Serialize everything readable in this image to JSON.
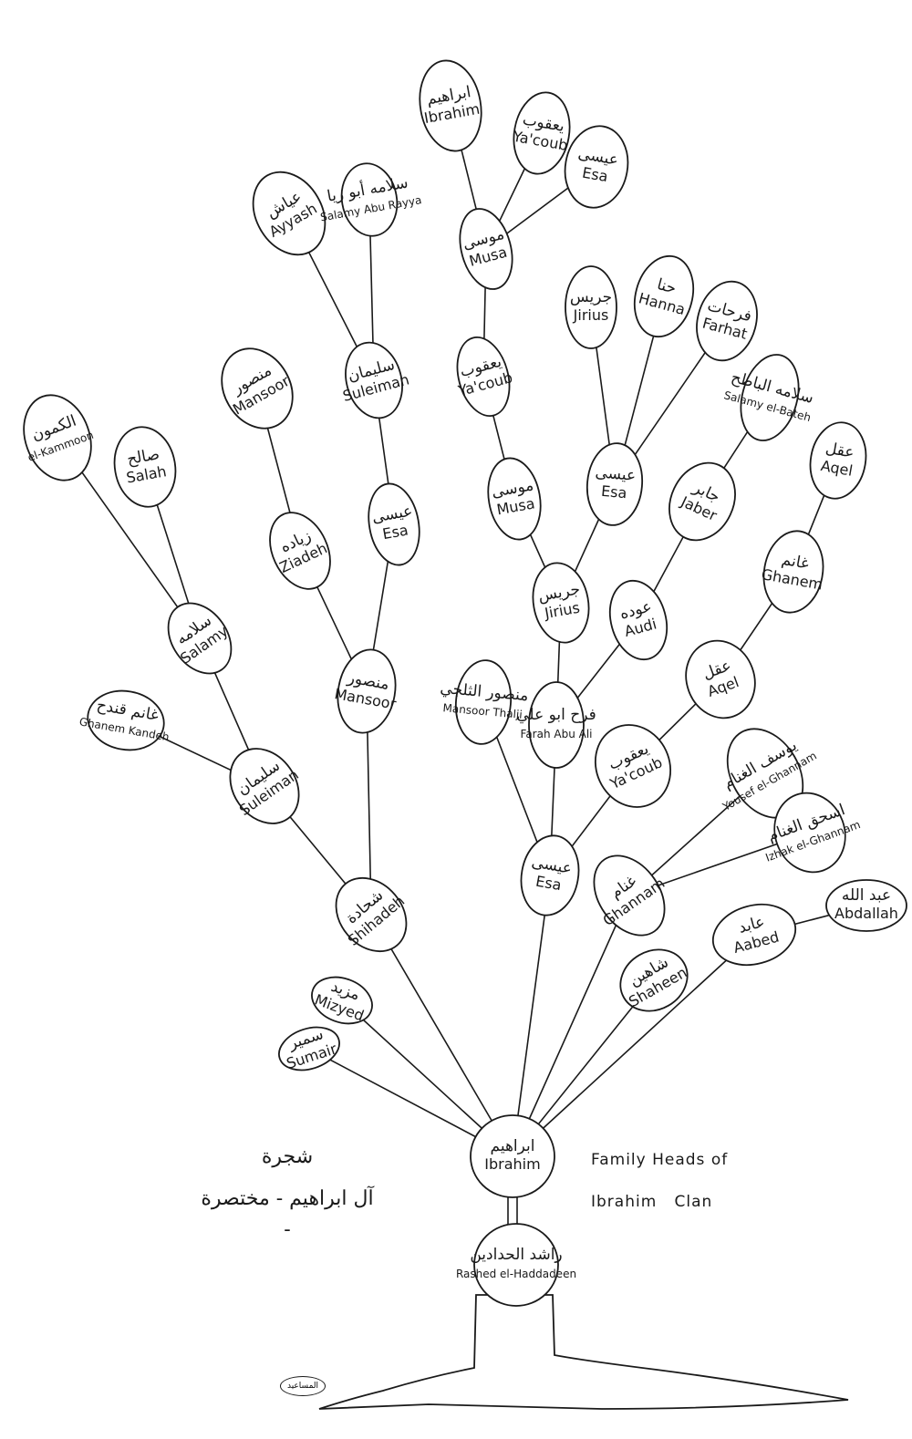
{
  "title_ar": [
    "شجرة",
    "آل ابراهيم - مختصرة -"
  ],
  "title_en": [
    "Family Heads of",
    "Ibrahim   Clan"
  ],
  "signature": "المساعيد",
  "colors": {
    "ink": "#1a1a1a",
    "paper": "#ffffff"
  },
  "nodes": [
    {
      "id": "rashed",
      "ar": "راشد الحدادين",
      "en": "Rashed el-Haddadeen"
    },
    {
      "id": "ibrahim",
      "ar": "ابراهيم",
      "en": "Ibrahim"
    },
    {
      "id": "sumair",
      "ar": "سمير",
      "en": "Sumair"
    },
    {
      "id": "mizyed",
      "ar": "مزيد",
      "en": "Mizyed"
    },
    {
      "id": "shihadeh",
      "ar": "شحادة",
      "en": "Shihadeh"
    },
    {
      "id": "esa1",
      "ar": "عيسى",
      "en": "Esa"
    },
    {
      "id": "ghannam1",
      "ar": "غنام",
      "en": "Ghannam"
    },
    {
      "id": "shaheen",
      "ar": "شاهين",
      "en": "Shaheen"
    },
    {
      "id": "aabed",
      "ar": "عابد",
      "en": "Aabed"
    },
    {
      "id": "abdallah",
      "ar": "عبد الله",
      "en": "Abdallah"
    },
    {
      "id": "suleiman1",
      "ar": "سليمان",
      "en": "Suleiman"
    },
    {
      "id": "mansoor1",
      "ar": "منصور",
      "en": "Mansoor"
    },
    {
      "id": "ghanem_kandeh",
      "ar": "غانم قندح",
      "en": "Ghanem Kandeh"
    },
    {
      "id": "salamy1",
      "ar": "سلامه",
      "en": "Salamy"
    },
    {
      "id": "kammoon",
      "ar": "الكمون",
      "en": "el-Kammoon"
    },
    {
      "id": "salah",
      "ar": "صالح",
      "en": "Salah"
    },
    {
      "id": "ziadeh",
      "ar": "زياده",
      "en": "Ziadeh"
    },
    {
      "id": "mansoor2",
      "ar": "منصور",
      "en": "Mansoor"
    },
    {
      "id": "esa2",
      "ar": "عيسى",
      "en": "Esa"
    },
    {
      "id": "suleiman2",
      "ar": "سليمان",
      "en": "Suleiman"
    },
    {
      "id": "ayyash",
      "ar": "عياش",
      "en": "Ayyash"
    },
    {
      "id": "salamy_abu",
      "ar": "سلامه أبو ريا",
      "en": "Salamy Abu Rayya"
    },
    {
      "id": "mansoor_thalji",
      "ar": "منصور الثلجي",
      "en": "Mansoor Thalji"
    },
    {
      "id": "farah",
      "ar": "فرح ابو علي",
      "en": "Farah Abu Ali"
    },
    {
      "id": "jirius1",
      "ar": "جريس",
      "en": "Jirius"
    },
    {
      "id": "musa1",
      "ar": "موسى",
      "en": "Musa"
    },
    {
      "id": "yacoub1",
      "ar": "يعقوب",
      "en": "Ya'coub"
    },
    {
      "id": "musa2",
      "ar": "موسى",
      "en": "Musa"
    },
    {
      "id": "ibrahim2",
      "ar": "ابراهيم",
      "en": "Ibrahim"
    },
    {
      "id": "yacoub2",
      "ar": "يعقوب",
      "en": "Ya'coub"
    },
    {
      "id": "esa_top",
      "ar": "عيسى",
      "en": "Esa"
    },
    {
      "id": "esa3",
      "ar": "عيسى",
      "en": "Esa"
    },
    {
      "id": "jirius2",
      "ar": "جريس",
      "en": "Jirius"
    },
    {
      "id": "hanna",
      "ar": "حنا",
      "en": "Hanna"
    },
    {
      "id": "farhat",
      "ar": "فرحات",
      "en": "Farhat"
    },
    {
      "id": "audi",
      "ar": "عوده",
      "en": "Audi"
    },
    {
      "id": "jaber",
      "ar": "جابر",
      "en": "Jaber"
    },
    {
      "id": "salamy_bateh",
      "ar": "سلامه الباطح",
      "en": "Salamy el-Bateh"
    },
    {
      "id": "yacoub3",
      "ar": "يعقوب",
      "en": "Ya'coub"
    },
    {
      "id": "aqel1",
      "ar": "عقل",
      "en": "Aqel"
    },
    {
      "id": "ghanem",
      "ar": "غانم",
      "en": "Ghanem"
    },
    {
      "id": "aqel2",
      "ar": "عقل",
      "en": "Aqel"
    },
    {
      "id": "yousef",
      "ar": "يوسف الغنام",
      "en": "Yousef el-Ghannam"
    },
    {
      "id": "izhak",
      "ar": "اسحق الغنام",
      "en": "Izhak el-Ghannam"
    }
  ],
  "edges": [
    [
      "ibrahim",
      "sumair"
    ],
    [
      "ibrahim",
      "mizyed"
    ],
    [
      "ibrahim",
      "shihadeh"
    ],
    [
      "ibrahim",
      "esa1"
    ],
    [
      "ibrahim",
      "ghannam1"
    ],
    [
      "ibrahim",
      "shaheen"
    ],
    [
      "ibrahim",
      "aabed"
    ],
    [
      "aabed",
      "abdallah"
    ],
    [
      "shihadeh",
      "suleiman1"
    ],
    [
      "shihadeh",
      "mansoor1"
    ],
    [
      "suleiman1",
      "ghanem_kandeh"
    ],
    [
      "suleiman1",
      "salamy1"
    ],
    [
      "salamy1",
      "kammoon"
    ],
    [
      "salamy1",
      "salah"
    ],
    [
      "mansoor1",
      "ziadeh"
    ],
    [
      "mansoor1",
      "esa2"
    ],
    [
      "ziadeh",
      "mansoor2"
    ],
    [
      "esa2",
      "suleiman2"
    ],
    [
      "suleiman2",
      "ayyash"
    ],
    [
      "suleiman2",
      "salamy_abu"
    ],
    [
      "esa1",
      "mansoor_thalji"
    ],
    [
      "esa1",
      "farah"
    ],
    [
      "esa1",
      "yacoub3"
    ],
    [
      "farah",
      "jirius1"
    ],
    [
      "farah",
      "audi"
    ],
    [
      "jirius1",
      "musa1"
    ],
    [
      "jirius1",
      "esa3"
    ],
    [
      "musa1",
      "yacoub1"
    ],
    [
      "yacoub1",
      "musa2"
    ],
    [
      "musa2",
      "ibrahim2"
    ],
    [
      "musa2",
      "yacoub2"
    ],
    [
      "musa2",
      "esa_top"
    ],
    [
      "esa3",
      "jirius2"
    ],
    [
      "esa3",
      "hanna"
    ],
    [
      "esa3",
      "farhat"
    ],
    [
      "audi",
      "jaber"
    ],
    [
      "jaber",
      "salamy_bateh"
    ],
    [
      "yacoub3",
      "aqel1"
    ],
    [
      "aqel1",
      "ghanem"
    ],
    [
      "ghanem",
      "aqel2"
    ],
    [
      "ghannam1",
      "yousef"
    ],
    [
      "ghannam1",
      "izhak"
    ]
  ]
}
